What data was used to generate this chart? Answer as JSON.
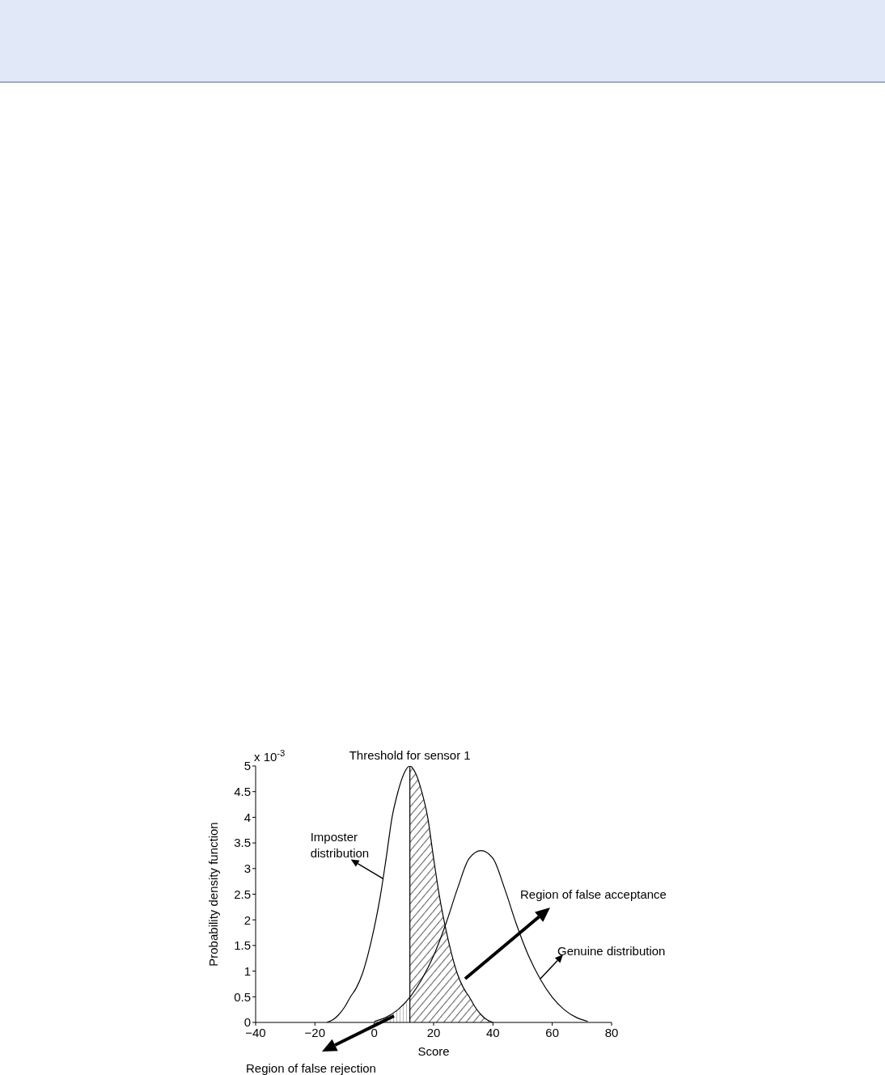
{
  "chart_data": {
    "type": "line",
    "xlabel": "Score",
    "ylabel": "Probability density function",
    "xlim": [
      -40,
      80
    ],
    "ylim": [
      0,
      5
    ],
    "xticks": [
      {
        "value": -40,
        "label": "−40"
      },
      {
        "value": -20,
        "label": "−20"
      },
      0,
      20,
      40,
      60,
      80
    ],
    "yticks": [
      0,
      0.5,
      1,
      1.5,
      2,
      2.5,
      3,
      3.5,
      4,
      4.5,
      5
    ],
    "marker": "none",
    "series": [
      {
        "color": "#000000",
        "x": [
          -16,
          -14,
          -12,
          -10,
          -8,
          -6,
          -4,
          -2,
          0,
          2,
          4,
          6,
          8,
          10,
          12,
          14,
          16,
          18,
          20,
          22,
          24,
          26,
          28,
          30,
          32,
          34,
          36,
          38,
          40
        ],
        "values": [
          0,
          0.05,
          0.15,
          0.3,
          0.5,
          0.68,
          0.95,
          1.35,
          1.85,
          2.45,
          3.2,
          4.0,
          4.5,
          4.85,
          5,
          4.85,
          4.5,
          4.0,
          3.2,
          2.45,
          1.85,
          1.35,
          0.95,
          0.68,
          0.5,
          0.3,
          0.15,
          0.05,
          0
        ]
      },
      {
        "color": "#000000",
        "x": [
          0,
          4,
          8,
          12,
          16,
          20,
          24,
          28,
          32,
          36,
          40,
          44,
          48,
          52,
          56,
          60,
          64,
          68,
          72
        ],
        "values": [
          0.02,
          0.1,
          0.25,
          0.49,
          0.84,
          1.3,
          1.9,
          2.6,
          3.2,
          3.35,
          3.2,
          2.6,
          1.9,
          1.3,
          0.84,
          0.49,
          0.25,
          0.1,
          0.02
        ]
      },
      {
        "type": "area",
        "color": "#000000",
        "x": [
          12,
          14,
          16,
          18,
          20,
          22,
          24,
          26,
          28,
          30,
          32,
          34,
          36,
          38,
          40
        ],
        "values": [
          5,
          4.85,
          4.5,
          4.0,
          3.2,
          2.45,
          1.85,
          1.35,
          0.95,
          0.68,
          0.5,
          0.3,
          0.15,
          0.05,
          0
        ]
      },
      {
        "type": "area",
        "color": "#000000",
        "x": [
          0,
          4,
          8,
          12
        ],
        "values": [
          0.02,
          0.1,
          0.25,
          0.49
        ]
      }
    ],
    "ref_lines": [
      {
        "axis": "x",
        "value": 12,
        "label": "Threshold for sensor 1",
        "color": "#000000"
      }
    ],
    "annotations": [
      "x 10$^{-3}$",
      {
        "text": "Imposter distribution",
        "x": 3,
        "y": 2.8
      },
      {
        "text": "Genuine distribution",
        "x": 56,
        "y": 0.85
      },
      "Region of false acceptance",
      "Region of false rejection"
    ]
  }
}
